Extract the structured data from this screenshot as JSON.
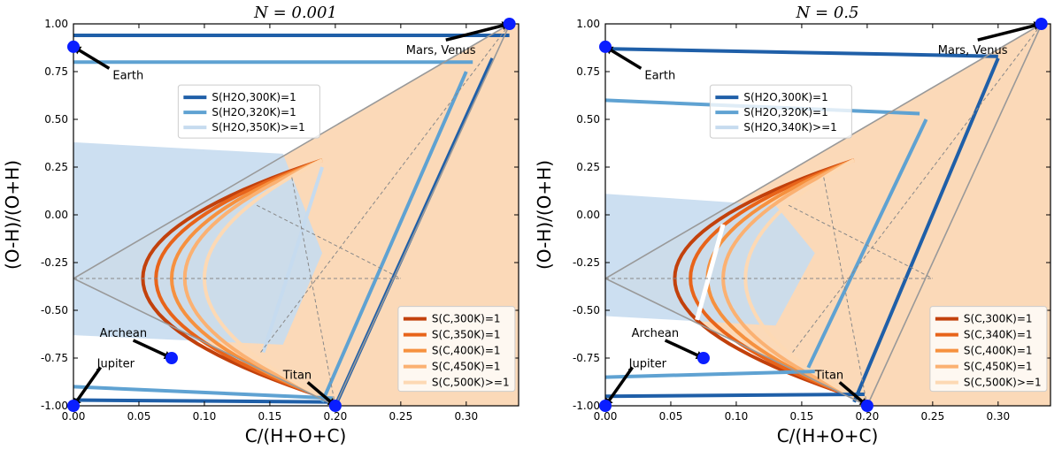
{
  "chart_data": [
    {
      "type": "line",
      "title": "N = 0.001",
      "xlabel": "C/(H+O+C)",
      "ylabel": "(O-H)/(O+H)",
      "xlim": [
        0,
        0.34
      ],
      "ylim": [
        -1.0,
        1.0
      ],
      "xticks": [
        "0.00",
        "0.05",
        "0.10",
        "0.15",
        "0.20",
        "0.25",
        "0.30"
      ],
      "yticks": [
        "-1.00",
        "-0.75",
        "-0.50",
        "-0.25",
        "0.00",
        "0.25",
        "0.50",
        "0.75",
        "1.00"
      ],
      "h2o_legend": [
        "S(H2O,300K)=1",
        "S(H2O,320K)=1",
        "S(H2O,350K)>=1"
      ],
      "c_legend": [
        "S(C,300K)=1",
        "S(C,350K)=1",
        "S(C,400K)=1",
        "S(C,450K)=1",
        "S(C,500K)>=1"
      ],
      "points": [
        {
          "label": "Earth",
          "x": 0.0,
          "y": 0.88
        },
        {
          "label": "Mars, Venus",
          "x": 0.333,
          "y": 1.0
        },
        {
          "label": "Archean",
          "x": 0.075,
          "y": -0.75
        },
        {
          "label": "Jupiter",
          "x": 0.0,
          "y": -1.0
        },
        {
          "label": "Titan",
          "x": 0.2,
          "y": -1.0
        }
      ],
      "h2o_series": [
        {
          "name": "S(H2O,300K)=1",
          "upper": [
            [
              0,
              0.94
            ],
            [
              0.333,
              0.94
            ]
          ],
          "lower": [
            [
              0,
              -0.97
            ],
            [
              0.2,
              -0.98
            ]
          ],
          "diag": [
            [
              0.2,
              -1.0
            ],
            [
              0.32,
              0.82
            ]
          ]
        },
        {
          "name": "S(H2O,320K)=1",
          "upper": [
            [
              0,
              0.8
            ],
            [
              0.305,
              0.8
            ]
          ],
          "lower": [
            [
              0,
              -0.9
            ],
            [
              0.198,
              -0.96
            ]
          ],
          "diag": [
            [
              0.19,
              -0.98
            ],
            [
              0.3,
              0.75
            ]
          ]
        }
      ],
      "c_series": [
        {
          "name": "S(C,300K)=1",
          "x_min": 0.053
        },
        {
          "name": "S(C,350K)=1",
          "x_min": 0.063
        },
        {
          "name": "S(C,400K)=1",
          "x_min": 0.075
        },
        {
          "name": "S(C,450K)=1",
          "x_min": 0.085
        },
        {
          "name": "S(C,500K)>=1",
          "x_min": 0.1
        }
      ],
      "blue_region": {
        "x_max": 0.16,
        "y_top": 0.32,
        "y_bottom": -0.68
      }
    },
    {
      "type": "line",
      "title": "N = 0.5",
      "xlabel": "C/(H+O+C)",
      "ylabel": "(O-H)/(O+H)",
      "xlim": [
        0,
        0.34
      ],
      "ylim": [
        -1.0,
        1.0
      ],
      "xticks": [
        "0.00",
        "0.05",
        "0.10",
        "0.15",
        "0.20",
        "0.25",
        "0.30"
      ],
      "yticks": [
        "-1.00",
        "-0.75",
        "-0.50",
        "-0.25",
        "0.00",
        "0.25",
        "0.50",
        "0.75",
        "1.00"
      ],
      "h2o_legend": [
        "S(H2O,300K)=1",
        "S(H2O,320K)=1",
        "S(H2O,340K)>=1"
      ],
      "c_legend": [
        "S(C,300K)=1",
        "S(C,340K)=1",
        "S(C,400K)=1",
        "S(C,450K)=1",
        "S(C,500K)>=1"
      ],
      "points": [
        {
          "label": "Earth",
          "x": 0.0,
          "y": 0.88
        },
        {
          "label": "Mars, Venus",
          "x": 0.333,
          "y": 1.0
        },
        {
          "label": "Archean",
          "x": 0.075,
          "y": -0.75
        },
        {
          "label": "Jupiter",
          "x": 0.0,
          "y": -1.0
        },
        {
          "label": "Titan",
          "x": 0.2,
          "y": -1.0
        }
      ],
      "h2o_series": [
        {
          "name": "S(H2O,300K)=1",
          "upper": [
            [
              0,
              0.87
            ],
            [
              0.3,
              0.83
            ]
          ],
          "lower": [
            [
              0,
              -0.95
            ],
            [
              0.198,
              -0.94
            ]
          ],
          "diag": [
            [
              0.19,
              -0.98
            ],
            [
              0.3,
              0.82
            ]
          ]
        },
        {
          "name": "S(H2O,320K)=1",
          "upper": [
            [
              0,
              0.6
            ],
            [
              0.24,
              0.53
            ]
          ],
          "lower": [
            [
              0,
              -0.85
            ],
            [
              0.16,
              -0.82
            ]
          ],
          "diag": [
            [
              0.155,
              -0.8
            ],
            [
              0.245,
              0.5
            ]
          ]
        }
      ],
      "c_series": [
        {
          "name": "S(C,300K)=1",
          "x_min": 0.053
        },
        {
          "name": "S(C,340K)=1",
          "x_min": 0.065
        },
        {
          "name": "S(C,400K)=1",
          "x_min": 0.078
        },
        {
          "name": "S(C,450K)=1",
          "x_min": 0.09
        },
        {
          "name": "S(C,500K)>=1",
          "x_min": 0.107
        }
      ],
      "blue_region": {
        "x_max": 0.13,
        "y_top": 0.05,
        "y_bottom": -0.58
      }
    }
  ],
  "colors": {
    "h2o": [
      "#1f5fa8",
      "#5fa2d2",
      "#c6dbef"
    ],
    "c": [
      "#c2410c",
      "#e8641a",
      "#f6913f",
      "#fbb172",
      "#fdd9b4"
    ],
    "orange_fill": "#fbd9b8",
    "blue_fill": "#c6dbef",
    "point": "#0a1eff",
    "gray": "#999999"
  }
}
